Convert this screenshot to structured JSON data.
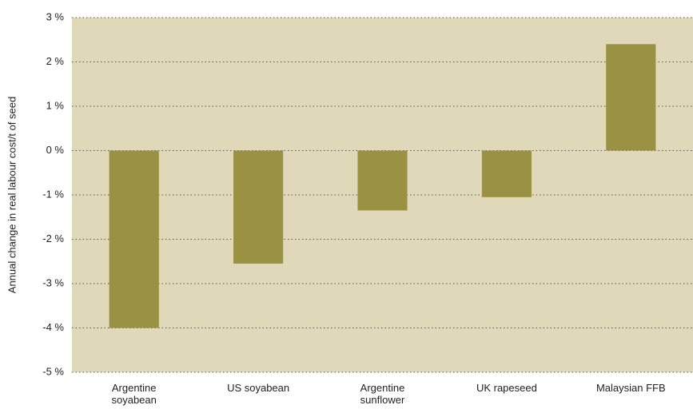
{
  "chart_data": {
    "type": "bar",
    "y_label": "Annual change in real labour cost/t of seed",
    "categories": [
      "Argentine soyabean",
      "US soyabean",
      "Argentine sunflower",
      "UK rapeseed",
      "Malaysian FFB"
    ],
    "values": [
      -4.0,
      -2.55,
      -1.35,
      -1.05,
      2.4
    ],
    "color": "#9a9143",
    "background": "#e0d9b9",
    "ylim": [
      -5,
      3
    ],
    "yticks": [
      {
        "value": -5,
        "label": "-5 %"
      },
      {
        "value": -4,
        "label": "-4 %"
      },
      {
        "value": -3,
        "label": "-3 %"
      },
      {
        "value": -2,
        "label": "-2 %"
      },
      {
        "value": -1,
        "label": "-1 %"
      },
      {
        "value": 0,
        "label": "0 %"
      },
      {
        "value": 1,
        "label": "1 %"
      },
      {
        "value": 2,
        "label": "2 %"
      },
      {
        "value": 3,
        "label": "3 %"
      }
    ],
    "grid": true
  }
}
